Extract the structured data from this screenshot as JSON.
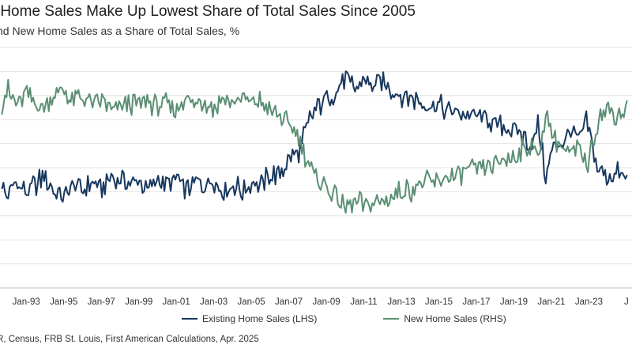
{
  "chart_data": {
    "type": "line",
    "title": "-Home Sales Make Up Lowest Share of Total Sales Since 2005",
    "subtitle": "nd New Home Sales as a Share of Total Sales, %",
    "source": "R, Census, FRB St. Louis, First American Calculations, Apr. 2025",
    "xlabel": "",
    "ylabel": "",
    "grid": true,
    "legend_position": "bottom",
    "x_ticks": [
      "Jan-93",
      "Jan-95",
      "Jan-97",
      "Jan-99",
      "Jan-01",
      "Jan-03",
      "Jan-05",
      "Jan-07",
      "Jan-09",
      "Jan-11",
      "Jan-13",
      "Jan-15",
      "Jan-17",
      "Jan-19",
      "Jan-21",
      "Jan-23",
      "J"
    ],
    "x_range": [
      1991.6,
      2025.3
    ],
    "y_range": [
      0,
      10
    ],
    "series": [
      {
        "name": "Existing Home Sales (LHS)",
        "color": "#17375e",
        "points": [
          [
            1991.7,
            4.2
          ],
          [
            1992.0,
            3.7
          ],
          [
            1992.5,
            4.4
          ],
          [
            1993.0,
            3.9
          ],
          [
            1993.5,
            4.3
          ],
          [
            1994.0,
            4.6
          ],
          [
            1994.5,
            4.0
          ],
          [
            1995.0,
            3.8
          ],
          [
            1995.5,
            4.3
          ],
          [
            1996.0,
            4.0
          ],
          [
            1996.5,
            4.4
          ],
          [
            1997.0,
            4.1
          ],
          [
            1997.5,
            4.5
          ],
          [
            1998.0,
            4.6
          ],
          [
            1998.5,
            4.3
          ],
          [
            1999.0,
            4.4
          ],
          [
            1999.5,
            4.2
          ],
          [
            2000.0,
            4.5
          ],
          [
            2000.5,
            4.3
          ],
          [
            2001.0,
            4.6
          ],
          [
            2001.5,
            4.0
          ],
          [
            2002.0,
            4.4
          ],
          [
            2002.5,
            4.2
          ],
          [
            2003.0,
            4.5
          ],
          [
            2003.5,
            4.1
          ],
          [
            2004.0,
            4.3
          ],
          [
            2004.5,
            4.0
          ],
          [
            2005.0,
            4.4
          ],
          [
            2005.5,
            4.3
          ],
          [
            2006.0,
            4.6
          ],
          [
            2006.5,
            4.8
          ],
          [
            2007.0,
            5.3
          ],
          [
            2007.5,
            5.6
          ],
          [
            2008.0,
            6.8
          ],
          [
            2008.5,
            7.5
          ],
          [
            2009.0,
            7.9
          ],
          [
            2009.5,
            8.1
          ],
          [
            2010.0,
            8.7
          ],
          [
            2010.5,
            8.3
          ],
          [
            2011.0,
            8.6
          ],
          [
            2011.5,
            8.4
          ],
          [
            2012.0,
            8.5
          ],
          [
            2012.5,
            8.2
          ],
          [
            2013.0,
            8.0
          ],
          [
            2013.5,
            7.9
          ],
          [
            2014.0,
            7.7
          ],
          [
            2014.5,
            7.6
          ],
          [
            2015.0,
            7.6
          ],
          [
            2015.5,
            7.4
          ],
          [
            2016.0,
            7.3
          ],
          [
            2016.5,
            7.1
          ],
          [
            2017.0,
            7.2
          ],
          [
            2017.5,
            7.0
          ],
          [
            2018.0,
            6.9
          ],
          [
            2018.5,
            6.7
          ],
          [
            2019.0,
            6.5
          ],
          [
            2019.5,
            6.3
          ],
          [
            2020.0,
            5.9
          ],
          [
            2020.3,
            6.8
          ],
          [
            2020.7,
            4.6
          ],
          [
            2021.0,
            5.6
          ],
          [
            2021.5,
            6.0
          ],
          [
            2022.0,
            6.5
          ],
          [
            2022.5,
            6.1
          ],
          [
            2022.9,
            6.9
          ],
          [
            2023.2,
            5.8
          ],
          [
            2023.5,
            4.9
          ],
          [
            2024.0,
            4.6
          ],
          [
            2024.5,
            4.8
          ],
          [
            2025.1,
            4.5
          ]
        ]
      },
      {
        "name": "New Home Sales (RHS)",
        "color": "#5b8f74",
        "points": [
          [
            1991.7,
            7.7
          ],
          [
            1992.0,
            8.2
          ],
          [
            1992.5,
            7.6
          ],
          [
            1993.0,
            8.1
          ],
          [
            1993.5,
            7.7
          ],
          [
            1994.0,
            7.4
          ],
          [
            1994.5,
            8.0
          ],
          [
            1995.0,
            8.3
          ],
          [
            1995.5,
            7.7
          ],
          [
            1996.0,
            8.0
          ],
          [
            1996.5,
            7.6
          ],
          [
            1997.0,
            7.9
          ],
          [
            1997.5,
            7.5
          ],
          [
            1998.0,
            7.4
          ],
          [
            1998.5,
            7.7
          ],
          [
            1999.0,
            7.6
          ],
          [
            1999.5,
            7.8
          ],
          [
            2000.0,
            7.5
          ],
          [
            2000.5,
            7.7
          ],
          [
            2001.0,
            7.4
          ],
          [
            2001.5,
            8.0
          ],
          [
            2002.0,
            7.6
          ],
          [
            2002.5,
            7.8
          ],
          [
            2003.0,
            7.5
          ],
          [
            2003.5,
            7.9
          ],
          [
            2004.0,
            7.7
          ],
          [
            2004.5,
            8.0
          ],
          [
            2005.0,
            7.6
          ],
          [
            2005.5,
            7.7
          ],
          [
            2006.0,
            7.4
          ],
          [
            2006.5,
            7.2
          ],
          [
            2007.0,
            6.7
          ],
          [
            2007.5,
            6.4
          ],
          [
            2008.0,
            5.2
          ],
          [
            2008.5,
            4.5
          ],
          [
            2009.0,
            4.1
          ],
          [
            2009.5,
            3.9
          ],
          [
            2010.0,
            3.3
          ],
          [
            2010.5,
            3.7
          ],
          [
            2011.0,
            3.4
          ],
          [
            2011.5,
            3.6
          ],
          [
            2012.0,
            3.5
          ],
          [
            2012.5,
            3.8
          ],
          [
            2013.0,
            4.0
          ],
          [
            2013.5,
            4.1
          ],
          [
            2014.0,
            4.3
          ],
          [
            2014.5,
            4.4
          ],
          [
            2015.0,
            4.4
          ],
          [
            2015.5,
            4.6
          ],
          [
            2016.0,
            4.7
          ],
          [
            2016.5,
            4.9
          ],
          [
            2017.0,
            4.8
          ],
          [
            2017.5,
            5.0
          ],
          [
            2018.0,
            5.1
          ],
          [
            2018.5,
            5.3
          ],
          [
            2019.0,
            5.5
          ],
          [
            2019.5,
            5.7
          ],
          [
            2020.0,
            6.1
          ],
          [
            2020.3,
            5.2
          ],
          [
            2020.7,
            7.4
          ],
          [
            2021.0,
            6.4
          ],
          [
            2021.5,
            6.0
          ],
          [
            2022.0,
            5.5
          ],
          [
            2022.5,
            5.9
          ],
          [
            2022.9,
            5.1
          ],
          [
            2023.2,
            6.2
          ],
          [
            2023.5,
            7.1
          ],
          [
            2024.0,
            7.4
          ],
          [
            2024.5,
            7.2
          ],
          [
            2025.1,
            7.5
          ]
        ]
      }
    ]
  }
}
